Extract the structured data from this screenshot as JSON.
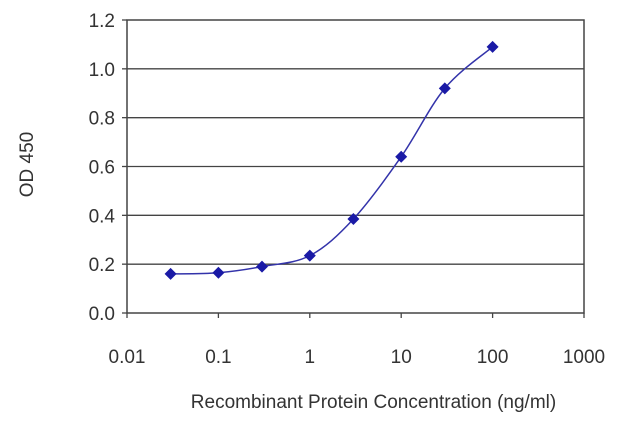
{
  "chart_data": {
    "type": "scatter",
    "title": "",
    "xlabel": "Recombinant Protein Concentration (ng/ml)",
    "ylabel": "OD 450",
    "x_scale": "log",
    "xlim": [
      0.01,
      1000
    ],
    "ylim": [
      0.0,
      1.2
    ],
    "x_ticks": [
      0.01,
      0.1,
      1,
      10,
      100,
      1000
    ],
    "x_tick_labels": [
      "0.01",
      "0.1",
      "1",
      "10",
      "100",
      "1000"
    ],
    "y_ticks": [
      0.0,
      0.2,
      0.4,
      0.6,
      0.8,
      1.0,
      1.2
    ],
    "y_tick_labels": [
      "0.0",
      "0.2",
      "0.4",
      "0.6",
      "0.8",
      "1.0",
      "1.2"
    ],
    "grid": "horizontal",
    "legend": "none",
    "series": [
      {
        "x": [
          0.03,
          0.1,
          0.3,
          1,
          3,
          10,
          30,
          100
        ],
        "y": [
          0.16,
          0.165,
          0.19,
          0.235,
          0.385,
          0.64,
          0.92,
          1.09
        ],
        "color": "#1a1aa6",
        "fit_curve": true
      }
    ]
  }
}
